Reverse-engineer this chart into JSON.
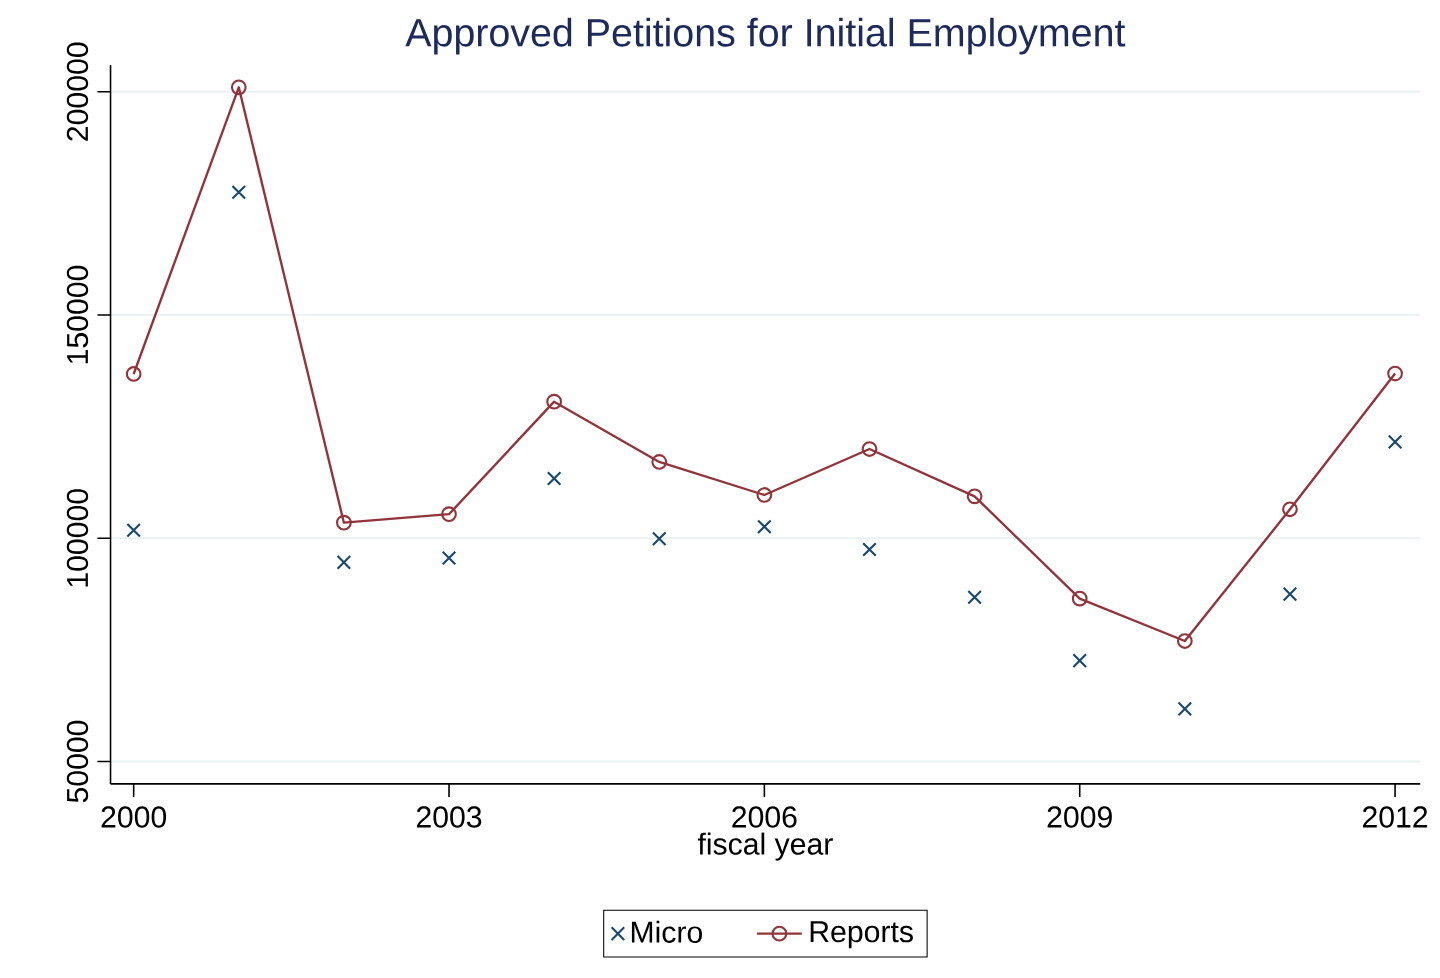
{
  "chart_data": {
    "type": "line",
    "title": "Approved Petitions for Initial Employment",
    "xlabel": "fiscal year",
    "x": [
      2000,
      2001,
      2002,
      2003,
      2004,
      2005,
      2006,
      2007,
      2008,
      2009,
      2010,
      2011,
      2012
    ],
    "series": [
      {
        "name": "Micro",
        "type": "scatter",
        "marker": "cross",
        "color": "#1a476f",
        "values": [
          101800,
          177500,
          94600,
          95600,
          113400,
          99900,
          102600,
          97500,
          86800,
          72600,
          61800,
          87500,
          121600
        ]
      },
      {
        "name": "Reports",
        "type": "line",
        "marker": "circle",
        "color": "#90353b",
        "values": [
          136800,
          201000,
          103500,
          105400,
          130600,
          117100,
          109700,
          120000,
          109400,
          86500,
          77000,
          106500,
          136900
        ]
      }
    ],
    "xlim": [
      1999.78,
      2012.24
    ],
    "ylim": [
      45000,
      206000
    ],
    "xticks": [
      2000,
      2003,
      2006,
      2009,
      2012
    ],
    "yticks": [
      50000,
      100000,
      150000,
      200000
    ],
    "grid": "y",
    "legend": "bottom"
  }
}
